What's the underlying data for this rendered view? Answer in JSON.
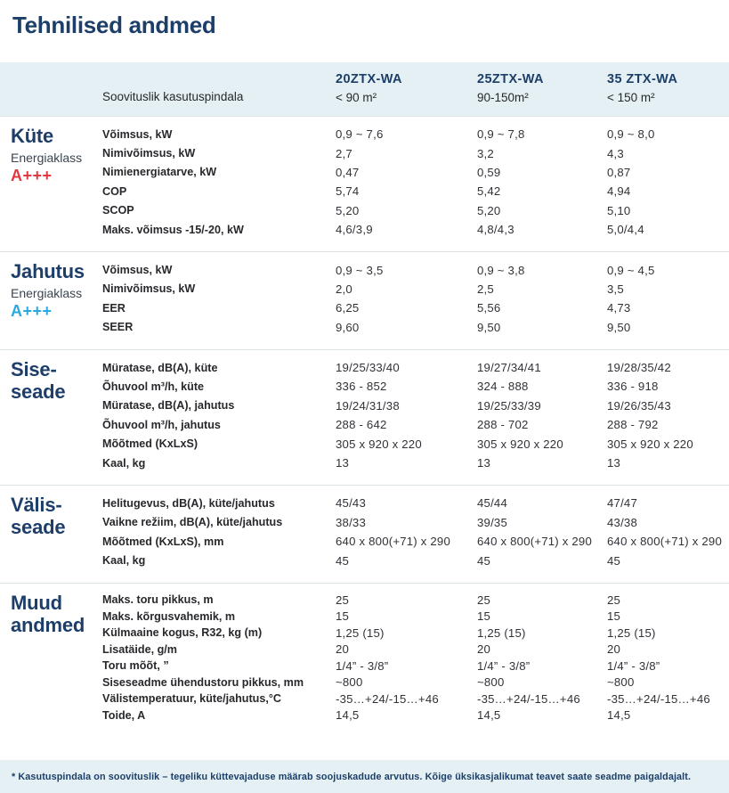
{
  "page": {
    "title": "Tehnilised andmed",
    "footnote": "* Kasutuspindala on soovituslik – tegeliku küttevajaduse määrab soojuskadude arvutus. Kõige üksikasjalikumat teavet saate seadme paigaldajalt."
  },
  "colors": {
    "navy": "#1c3e69",
    "red": "#e2383f",
    "cyan": "#29a9e1",
    "band": "#e4f0f3",
    "divider": "#dde4e7",
    "label": "#27282c",
    "value": "#313238"
  },
  "header": {
    "area_label": "Soovituslik kasutuspindala",
    "models": [
      {
        "name": "20ZTX-WA",
        "area": "< 90 m²"
      },
      {
        "name": "25ZTX-WA",
        "area": "90-150m²"
      },
      {
        "name": "35 ZTX-WA",
        "area": "< 150 m²"
      }
    ]
  },
  "sections": [
    {
      "id": "kyte",
      "name_lines": [
        "Küte"
      ],
      "energy_label": "Energiaklass",
      "energy_class": "A+++",
      "energy_color": "#e2383f",
      "rows": [
        {
          "label": "Võimsus, kW",
          "values": [
            "0,9 ~ 7,6",
            "0,9 ~ 7,8",
            "0,9 ~ 8,0"
          ]
        },
        {
          "label": "Nimivõimsus, kW",
          "values": [
            "2,7",
            "3,2",
            "4,3"
          ]
        },
        {
          "label": "Nimienergiatarve, kW",
          "values": [
            "0,47",
            "0,59",
            "0,87"
          ]
        },
        {
          "label": "COP",
          "values": [
            "5,74",
            "5,42",
            "4,94"
          ]
        },
        {
          "label": "SCOP",
          "values": [
            "5,20",
            "5,20",
            "5,10"
          ]
        },
        {
          "label": "Maks. võimsus -15/-20, kW",
          "values": [
            "4,6/3,9",
            "4,8/4,3",
            "5,0/4,4"
          ]
        }
      ]
    },
    {
      "id": "jahutus",
      "name_lines": [
        "Jahutus"
      ],
      "energy_label": "Energiaklass",
      "energy_class": "A+++",
      "energy_color": "#29a9e1",
      "rows": [
        {
          "label": "Võimsus, kW",
          "values": [
            "0,9 ~ 3,5",
            "0,9 ~ 3,8",
            "0,9 ~ 4,5"
          ]
        },
        {
          "label": "Nimivõimsus, kW",
          "values": [
            "2,0",
            "2,5",
            "3,5"
          ]
        },
        {
          "label": "EER",
          "values": [
            "6,25",
            "5,56",
            "4,73"
          ]
        },
        {
          "label": "SEER",
          "values": [
            "9,60",
            "9,50",
            "9,50"
          ]
        }
      ]
    },
    {
      "id": "siseseade",
      "name_lines": [
        "Sise-",
        "seade"
      ],
      "rows": [
        {
          "label": "Müratase, dB(A), küte",
          "values": [
            "19/25/33/40",
            "19/27/34/41",
            "19/28/35/42"
          ]
        },
        {
          "label": "Õhuvool m³/h, küte",
          "values": [
            "336 - 852",
            "324 - 888",
            "336 - 918"
          ]
        },
        {
          "label": "Müratase, dB(A), jahutus",
          "values": [
            "19/24/31/38",
            "19/25/33/39",
            "19/26/35/43"
          ]
        },
        {
          "label": "Õhuvool m³/h, jahutus",
          "values": [
            "288 - 642",
            "288 - 702",
            "288 - 792"
          ]
        },
        {
          "label": "Mõõtmed (KxLxS)",
          "values": [
            "305 x 920 x 220",
            "305 x 920 x 220",
            "305 x 920 x 220"
          ]
        },
        {
          "label": "Kaal, kg",
          "values": [
            "13",
            "13",
            "13"
          ]
        }
      ]
    },
    {
      "id": "valisseade",
      "name_lines": [
        "Välis-",
        "seade"
      ],
      "rows": [
        {
          "label": "Helitugevus, dB(A), küte/jahutus",
          "values": [
            "45/43",
            "45/44",
            "47/47"
          ]
        },
        {
          "label": "Vaikne režiim, dB(A), küte/jahutus",
          "values": [
            "38/33",
            "39/35",
            "43/38"
          ]
        },
        {
          "label": "Mõõtmed (KxLxS), mm",
          "values": [
            "640 x 800(+71) x 290",
            "640 x 800(+71) x 290",
            "640 x 800(+71) x 290"
          ]
        },
        {
          "label": "Kaal, kg",
          "values": [
            "45",
            "45",
            "45"
          ]
        }
      ]
    },
    {
      "id": "muud-andmed",
      "name_lines": [
        "Muud",
        "andmed"
      ],
      "compact": true,
      "rows": [
        {
          "label": "Maks. toru pikkus, m",
          "values": [
            "25",
            "25",
            "25"
          ]
        },
        {
          "label": "Maks. kõrgusvahemik, m",
          "values": [
            "15",
            "15",
            "15"
          ]
        },
        {
          "label": "Külmaaine kogus, R32, kg (m)",
          "values": [
            "1,25 (15)",
            "1,25 (15)",
            "1,25 (15)"
          ]
        },
        {
          "label": "Lisatäide, g/m",
          "values": [
            "20",
            "20",
            "20"
          ]
        },
        {
          "label": "Toru mõõt, ”",
          "values": [
            "1/4” - 3/8”",
            "1/4” - 3/8”",
            "1/4” - 3/8”"
          ]
        },
        {
          "label": "Siseseadme ühendustoru pikkus, mm",
          "values": [
            "~800",
            "~800",
            "~800"
          ]
        },
        {
          "label": "Välistemperatuur, küte/jahutus,°C",
          "values": [
            "-35…+24/-15…+46",
            "-35…+24/-15…+46",
            "-35…+24/-15…+46"
          ]
        },
        {
          "label": "Toide, A",
          "values": [
            "14,5",
            "14,5",
            "14,5"
          ]
        }
      ]
    }
  ]
}
